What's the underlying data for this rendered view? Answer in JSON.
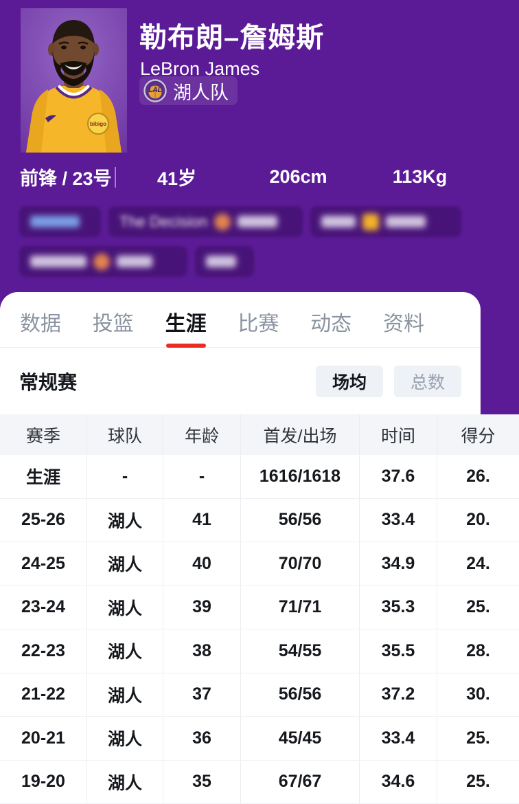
{
  "player": {
    "name_cn": "勒布朗–詹姆斯",
    "name_en": "LeBron James",
    "team": "湖人队",
    "team_logo_text": "LAL",
    "position_and_number": "前锋 / 23号",
    "age": "41岁",
    "height": "206cm",
    "weight": "113Kg",
    "blurred_tag_text": "The Decision"
  },
  "tabs": [
    {
      "label": "数据",
      "active": false
    },
    {
      "label": "投篮",
      "active": false
    },
    {
      "label": "生涯",
      "active": true
    },
    {
      "label": "比赛",
      "active": false
    },
    {
      "label": "动态",
      "active": false
    },
    {
      "label": "资料",
      "active": false
    }
  ],
  "season_section": {
    "title": "常规赛",
    "toggles": [
      {
        "label": "场均",
        "active": true
      },
      {
        "label": "总数",
        "active": false
      }
    ]
  },
  "stats_table": {
    "columns": [
      "赛季",
      "球队",
      "年龄",
      "首发/出场",
      "时间",
      "得分"
    ],
    "rows": [
      [
        "生涯",
        "-",
        "-",
        "1616/1618",
        "37.6",
        "26."
      ],
      [
        "25-26",
        "湖人",
        "41",
        "56/56",
        "33.4",
        "20."
      ],
      [
        "24-25",
        "湖人",
        "40",
        "70/70",
        "34.9",
        "24."
      ],
      [
        "23-24",
        "湖人",
        "39",
        "71/71",
        "35.3",
        "25."
      ],
      [
        "22-23",
        "湖人",
        "38",
        "54/55",
        "35.5",
        "28."
      ],
      [
        "21-22",
        "湖人",
        "37",
        "56/56",
        "37.2",
        "30."
      ],
      [
        "20-21",
        "湖人",
        "36",
        "45/45",
        "33.4",
        "25."
      ],
      [
        "19-20",
        "湖人",
        "35",
        "67/67",
        "34.6",
        "25."
      ]
    ]
  },
  "colors": {
    "header_purple": "#5c1b96",
    "active_tab_red": "#ee2b20",
    "jersey_gold": "#f6b62a",
    "toggle_bg": "#eef1f6"
  }
}
